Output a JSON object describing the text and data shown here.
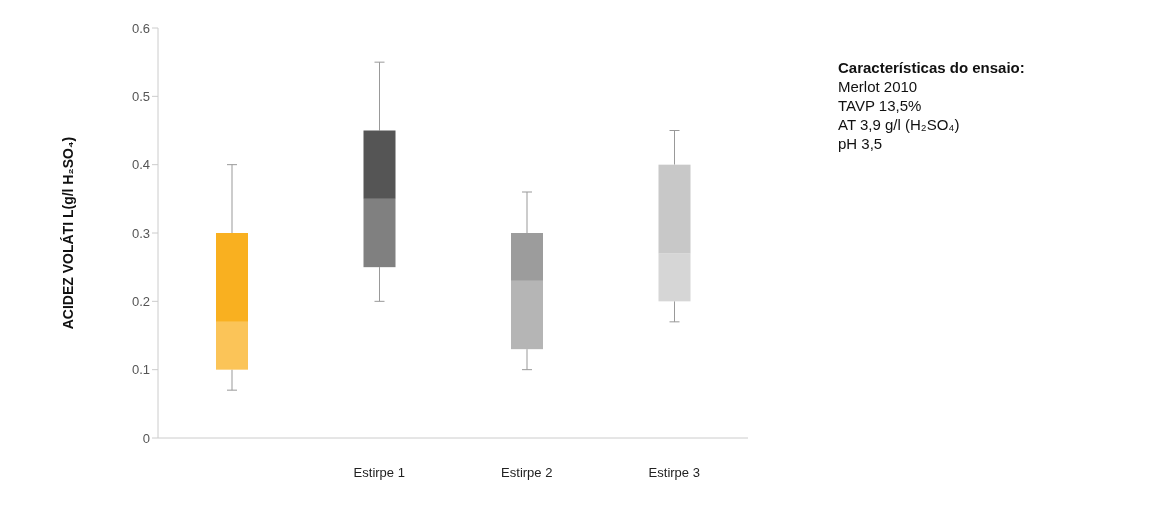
{
  "chart_data": {
    "type": "box",
    "ylabel": "ACIDEZ VOLÁTI L(g/l H₂SO₄)",
    "categories": [
      null,
      "Estirpe 1",
      "Estirpe 2",
      "Estirpe 3"
    ],
    "colors": [
      "#f9b020",
      "#555555",
      "#9c9c9c",
      "#c8c8c8"
    ],
    "boxes": [
      {
        "low": 0.07,
        "q1": 0.1,
        "median": 0.17,
        "q3": 0.3,
        "high": 0.4
      },
      {
        "low": 0.2,
        "q1": 0.25,
        "median": 0.35,
        "q3": 0.45,
        "high": 0.55
      },
      {
        "low": 0.1,
        "q1": 0.13,
        "median": 0.23,
        "q3": 0.3,
        "high": 0.36
      },
      {
        "low": 0.17,
        "q1": 0.2,
        "median": 0.27,
        "q3": 0.4,
        "high": 0.45
      }
    ],
    "ylim": [
      0,
      0.6
    ],
    "yticks": [
      0,
      0.1,
      0.2,
      0.3,
      0.4,
      0.5,
      0.6
    ],
    "grid": false,
    "legend": false,
    "annotations": [
      "Características do ensaio:",
      "Merlot 2010",
      "TAVP 13,5%",
      "AT 3,9 g/l (H₂SO₄)",
      "pH 3,5"
    ]
  }
}
